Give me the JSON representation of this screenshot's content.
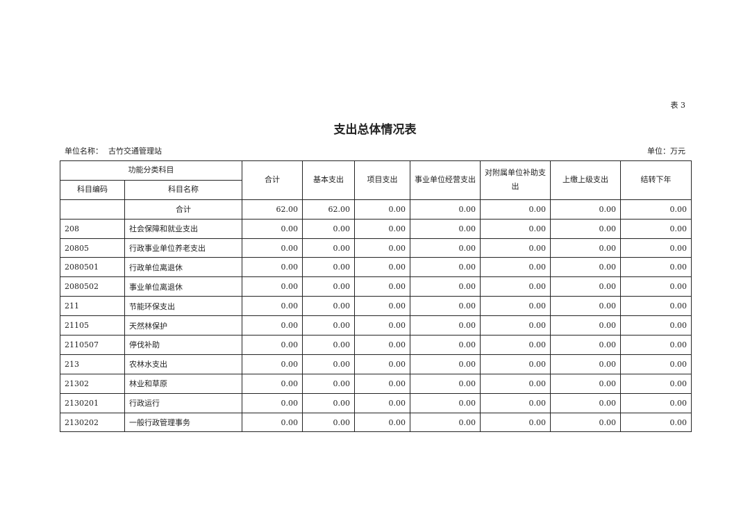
{
  "table_no": "表 3",
  "title": "支出总体情况表",
  "unit_name_label": "单位名称：",
  "unit_name": "古竹交通管理站",
  "unit": "单位：万元",
  "headers": {
    "group": "功能分类科目",
    "code": "科目编码",
    "name": "科目名称",
    "total": "合计",
    "basic": "基本支出",
    "project": "项目支出",
    "business": "事业单位经营支出",
    "subsidy": "对附属单位补助支出",
    "upper": "上缴上级支出",
    "carry": "结转下年"
  },
  "rows": [
    {
      "code": "",
      "name": "合计",
      "v": [
        "62.00",
        "62.00",
        "0.00",
        "0.00",
        "0.00",
        "0.00",
        "0.00"
      ]
    },
    {
      "code": "208",
      "name": "社会保障和就业支出",
      "v": [
        "0.00",
        "0.00",
        "0.00",
        "0.00",
        "0.00",
        "0.00",
        "0.00"
      ]
    },
    {
      "code": "20805",
      "name": "行政事业单位养老支出",
      "v": [
        "0.00",
        "0.00",
        "0.00",
        "0.00",
        "0.00",
        "0.00",
        "0.00"
      ]
    },
    {
      "code": "2080501",
      "name": "行政单位离退休",
      "v": [
        "0.00",
        "0.00",
        "0.00",
        "0.00",
        "0.00",
        "0.00",
        "0.00"
      ]
    },
    {
      "code": "2080502",
      "name": "事业单位离退休",
      "v": [
        "0.00",
        "0.00",
        "0.00",
        "0.00",
        "0.00",
        "0.00",
        "0.00"
      ]
    },
    {
      "code": "211",
      "name": "节能环保支出",
      "v": [
        "0.00",
        "0.00",
        "0.00",
        "0.00",
        "0.00",
        "0.00",
        "0.00"
      ]
    },
    {
      "code": "21105",
      "name": "天然林保护",
      "v": [
        "0.00",
        "0.00",
        "0.00",
        "0.00",
        "0.00",
        "0.00",
        "0.00"
      ]
    },
    {
      "code": "2110507",
      "name": "停伐补助",
      "v": [
        "0.00",
        "0.00",
        "0.00",
        "0.00",
        "0.00",
        "0.00",
        "0.00"
      ]
    },
    {
      "code": "213",
      "name": "农林水支出",
      "v": [
        "0.00",
        "0.00",
        "0.00",
        "0.00",
        "0.00",
        "0.00",
        "0.00"
      ]
    },
    {
      "code": "21302",
      "name": "林业和草原",
      "v": [
        "0.00",
        "0.00",
        "0.00",
        "0.00",
        "0.00",
        "0.00",
        "0.00"
      ]
    },
    {
      "code": "2130201",
      "name": "行政运行",
      "v": [
        "0.00",
        "0.00",
        "0.00",
        "0.00",
        "0.00",
        "0.00",
        "0.00"
      ]
    },
    {
      "code": "2130202",
      "name": "一般行政管理事务",
      "v": [
        "0.00",
        "0.00",
        "0.00",
        "0.00",
        "0.00",
        "0.00",
        "0.00"
      ]
    }
  ]
}
